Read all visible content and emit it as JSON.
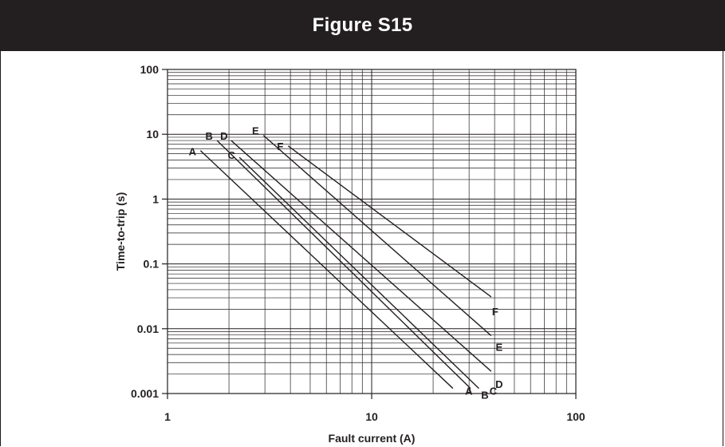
{
  "header": {
    "title": "Figure S15"
  },
  "chart_data": {
    "type": "line",
    "xscale": "log",
    "yscale": "log",
    "xlabel": "Fault current (A)",
    "ylabel": "Time-to-trip (s)",
    "xlim": [
      1,
      100
    ],
    "ylim": [
      0.001,
      100
    ],
    "xticks": [
      {
        "value": 1,
        "label": "1"
      },
      {
        "value": 10,
        "label": "10"
      },
      {
        "value": 100,
        "label": "100"
      }
    ],
    "yticks": [
      {
        "value": 100,
        "label": "100"
      },
      {
        "value": 10,
        "label": "10"
      },
      {
        "value": 1,
        "label": "1"
      },
      {
        "value": 0.1,
        "label": "0.1"
      },
      {
        "value": 0.01,
        "label": "0.01"
      },
      {
        "value": 0.001,
        "label": "0.001"
      }
    ],
    "grid": true,
    "series": [
      {
        "name": "A",
        "points": [
          [
            1.45,
            5.6
          ],
          [
            25,
            0.0012
          ]
        ]
      },
      {
        "name": "B",
        "points": [
          [
            1.75,
            8.0
          ],
          [
            30.5,
            0.0012
          ]
        ]
      },
      {
        "name": "C",
        "points": [
          [
            2.25,
            4.4
          ],
          [
            33.5,
            0.0012
          ]
        ]
      },
      {
        "name": "D",
        "points": [
          [
            2.05,
            8.0
          ],
          [
            38.5,
            0.0022
          ]
        ]
      },
      {
        "name": "E",
        "points": [
          [
            2.95,
            9.6
          ],
          [
            38.5,
            0.0078
          ]
        ]
      },
      {
        "name": "F",
        "points": [
          [
            3.9,
            6.6
          ],
          [
            38.5,
            0.031
          ]
        ]
      }
    ]
  }
}
